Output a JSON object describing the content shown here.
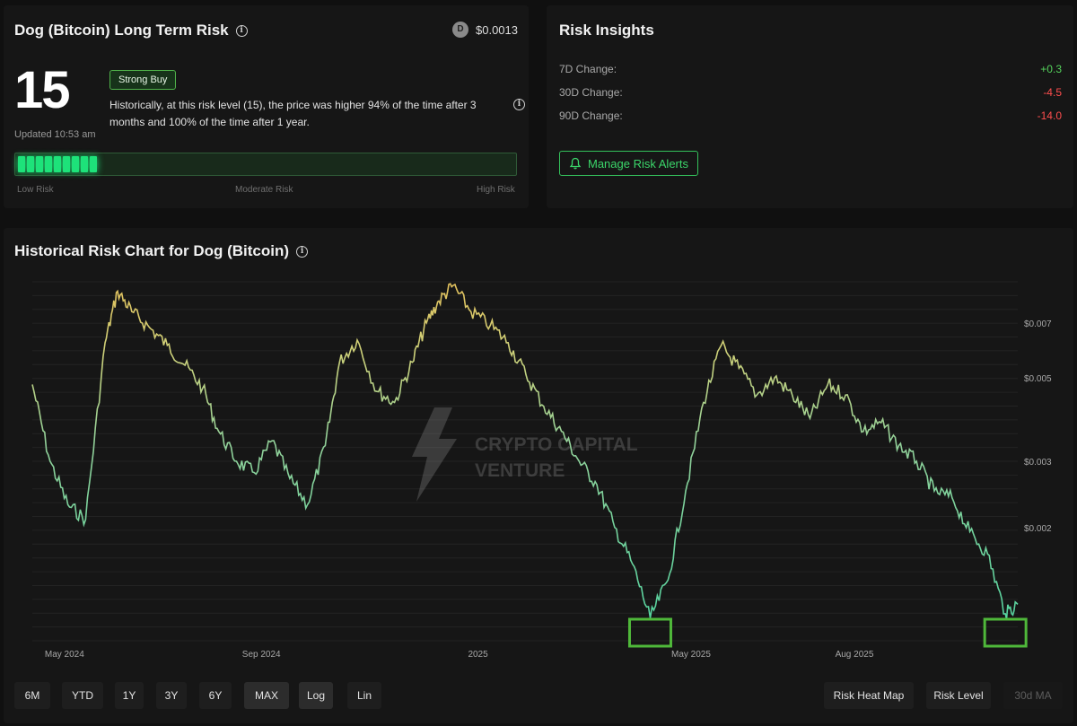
{
  "risk_card": {
    "title": "Dog (Bitcoin) Long Term Risk",
    "coin_letter": "D",
    "price": "$0.0013",
    "risk_value": "15",
    "updated": "Updated 10:53 am",
    "rating": "Strong Buy",
    "description": "Historically, at this risk level (15), the price was higher 94% of the time after 3 months and 100% of the time after 1 year.",
    "bar_level": 0.15,
    "bar_labels": [
      "Low Risk",
      "Moderate Risk",
      "High Risk"
    ],
    "bar_color": "#1ee27a"
  },
  "insights": {
    "title": "Risk Insights",
    "rows": [
      {
        "label": "7D Change:",
        "value": "+0.3"
      },
      {
        "label": "30D Change:",
        "value": "-4.5"
      },
      {
        "label": "90D Change:",
        "value": "-14.0"
      }
    ],
    "alerts_label": "Manage Risk Alerts"
  },
  "history": {
    "title": "Historical Risk Chart for Dog (Bitcoin)",
    "watermark_line1": "CRYPTO CAPITAL",
    "watermark_line2": "VENTURE",
    "range_buttons": [
      "6M",
      "YTD",
      "1Y",
      "3Y",
      "6Y",
      "MAX"
    ],
    "scale_buttons": [
      "Log",
      "Lin"
    ],
    "active_scale": "Log",
    "active_range": "MAX",
    "view_buttons": [
      "Risk Heat Map",
      "Risk Level",
      "30d MA"
    ]
  },
  "chart_data": {
    "type": "line",
    "xlabel": "",
    "ylabel": "",
    "scale": "log",
    "x_tick_labels": [
      "May 2024",
      "Sep 2024",
      "2025",
      "May 2025",
      "Aug 2025"
    ],
    "x_ticks": [
      "2024-05-01",
      "2024-09-01",
      "2025-01-01",
      "2025-05-01",
      "2025-08-01"
    ],
    "y_tick_labels": [
      "$0.007",
      "$0.005",
      "$0.003",
      "$0.002"
    ],
    "y_ticks": [
      0.007,
      0.005,
      0.003,
      0.002
    ],
    "ylim": [
      0.001,
      0.009
    ],
    "grid": true,
    "highlighted_lows": [
      "2025-04-08",
      "2025-10-25"
    ],
    "series": [
      {
        "x": [
          "2024-04-25",
          "2024-05-05",
          "2024-05-15",
          "2024-05-25",
          "2024-06-05",
          "2024-06-12",
          "2024-06-20",
          "2024-06-30",
          "2024-07-10",
          "2024-07-20",
          "2024-07-30",
          "2024-08-08",
          "2024-08-18",
          "2024-08-28",
          "2024-09-07",
          "2024-09-17",
          "2024-09-27",
          "2024-10-07",
          "2024-10-15",
          "2024-10-25",
          "2024-11-05",
          "2024-11-15",
          "2024-11-25",
          "2024-12-03",
          "2024-12-10",
          "2024-12-18",
          "2024-12-28",
          "2025-01-08",
          "2025-01-18",
          "2025-01-28",
          "2025-02-07",
          "2025-02-17",
          "2025-02-27",
          "2025-03-09",
          "2025-03-19",
          "2025-03-29",
          "2025-04-08",
          "2025-04-18",
          "2025-04-28",
          "2025-05-08",
          "2025-05-18",
          "2025-05-28",
          "2025-06-07",
          "2025-06-17",
          "2025-06-27",
          "2025-07-07",
          "2025-07-17",
          "2025-07-27",
          "2025-08-06",
          "2025-08-16",
          "2025-08-26",
          "2025-09-05",
          "2025-09-15",
          "2025-09-25",
          "2025-10-05",
          "2025-10-15",
          "2025-10-25",
          "2025-11-01"
        ],
        "values": [
          0.0048,
          0.003,
          0.0023,
          0.0021,
          0.0062,
          0.0085,
          0.0075,
          0.0068,
          0.0061,
          0.0054,
          0.0047,
          0.0036,
          0.003,
          0.0028,
          0.0034,
          0.0027,
          0.0023,
          0.0033,
          0.0055,
          0.0063,
          0.0046,
          0.0043,
          0.0055,
          0.007,
          0.008,
          0.0088,
          0.0075,
          0.0069,
          0.0062,
          0.0051,
          0.0042,
          0.0036,
          0.003,
          0.0026,
          0.002,
          0.0016,
          0.00115,
          0.00145,
          0.0025,
          0.0043,
          0.0061,
          0.0053,
          0.0045,
          0.005,
          0.0045,
          0.0039,
          0.0048,
          0.0045,
          0.0036,
          0.0038,
          0.0033,
          0.003,
          0.0025,
          0.0024,
          0.00195,
          0.0017,
          0.00118,
          0.00125
        ]
      }
    ]
  }
}
